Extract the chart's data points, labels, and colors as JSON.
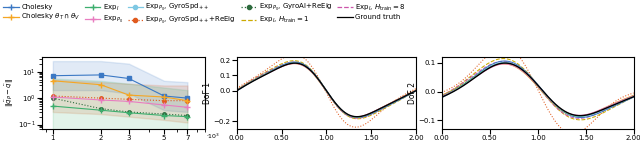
{
  "colors": {
    "cholesky": "#3b78c4",
    "cholesky_int": "#f5a623",
    "exp_i": "#3daf6e",
    "exp_p0": "#e87dc0",
    "exp_p0_gyro": "#7ec8e3",
    "exp_p0_gyro_reig": "#e05a1e",
    "exp_p0_gyroai_reig": "#2e6b3e",
    "exp_i_h1": "#ccaa00",
    "exp_i_h8": "#cc55aa",
    "ground": "#000000"
  },
  "legend_row1": [
    {
      "key": "cholesky",
      "label": "Cholesky",
      "ls": "-",
      "marker": "+"
    },
    {
      "key": "cholesky_int",
      "label": "Cholesky $\\theta_T \\cap \\theta_V$",
      "ls": "-",
      "marker": "+"
    },
    {
      "key": "exp_i",
      "label": "$\\mathrm{Exp}_I$",
      "ls": "-",
      "marker": "+"
    },
    {
      "key": "exp_p0",
      "label": "$\\mathrm{Exp}_{P_0}$",
      "ls": "-",
      "marker": "+"
    },
    {
      "key": "exp_p0_gyro",
      "label": "$\\mathrm{Exp}_{P_0}$, GyroSpd$_{++}$",
      "ls": "-",
      "marker": "o"
    }
  ],
  "legend_row2": [
    {
      "key": "exp_p0_gyro_reig",
      "label": "$\\mathrm{Exp}_{P_0}$, GyroSpd$_{++}$+ReEig",
      "ls": ":",
      "marker": "o"
    },
    {
      "key": "exp_p0_gyroai_reig",
      "label": "$\\mathrm{Exp}_{P_0}$, GyroAI+ReEig",
      "ls": ":",
      "marker": "o"
    },
    {
      "key": "exp_i_h1",
      "label": "$\\mathrm{Exp}_I$, $H_\\mathrm{train}=1$",
      "ls": "--",
      "marker": null
    },
    {
      "key": "exp_i_h8",
      "label": "$\\mathrm{Exp}_I$, $H_\\mathrm{train}=8$",
      "ls": "--",
      "marker": null
    },
    {
      "key": "ground",
      "label": "Ground truth",
      "ls": "-",
      "marker": null
    }
  ],
  "left_x": [
    1000,
    2000,
    3000,
    5000,
    7000
  ],
  "left_series": {
    "cholesky": {
      "mean": [
        7.0,
        7.5,
        5.5,
        1.2,
        1.0
      ],
      "lo": [
        2.0,
        2.0,
        1.5,
        0.35,
        0.3
      ],
      "hi": [
        25,
        25,
        20,
        4.5,
        4.0
      ],
      "ls": "-",
      "mk": "s",
      "ms": 3
    },
    "exp_p0_gyro_reig": {
      "mean": [
        1.2,
        1.0,
        0.9,
        0.8,
        0.8
      ],
      "lo": [
        0.3,
        0.25,
        0.2,
        0.15,
        0.12
      ],
      "hi": [
        5.0,
        4.0,
        3.5,
        3.0,
        3.0
      ],
      "ls": ":",
      "mk": "o",
      "ms": 2.5
    },
    "cholesky_int": {
      "mean": [
        4.5,
        3.2,
        1.3,
        1.1,
        0.8
      ],
      "lo": null,
      "hi": null,
      "ls": "-",
      "mk": "+",
      "ms": 4
    },
    "exp_p0_gyroai_reig": {
      "mean": [
        1.0,
        0.4,
        0.3,
        0.25,
        0.22
      ],
      "lo": null,
      "hi": null,
      "ls": ":",
      "mk": "o",
      "ms": 2.5
    },
    "exp_i": {
      "mean": [
        0.5,
        0.35,
        0.28,
        0.22,
        0.2
      ],
      "lo": [
        0.04,
        0.03,
        0.02,
        0.015,
        0.01
      ],
      "hi": [
        5.5,
        4.5,
        3.5,
        2.5,
        2.0
      ],
      "ls": "-",
      "mk": "+",
      "ms": 4
    },
    "exp_p0": {
      "mean": [
        1.1,
        0.85,
        0.75,
        0.55,
        0.45
      ],
      "lo": null,
      "hi": null,
      "ls": "-",
      "mk": "+",
      "ms": 4
    }
  }
}
